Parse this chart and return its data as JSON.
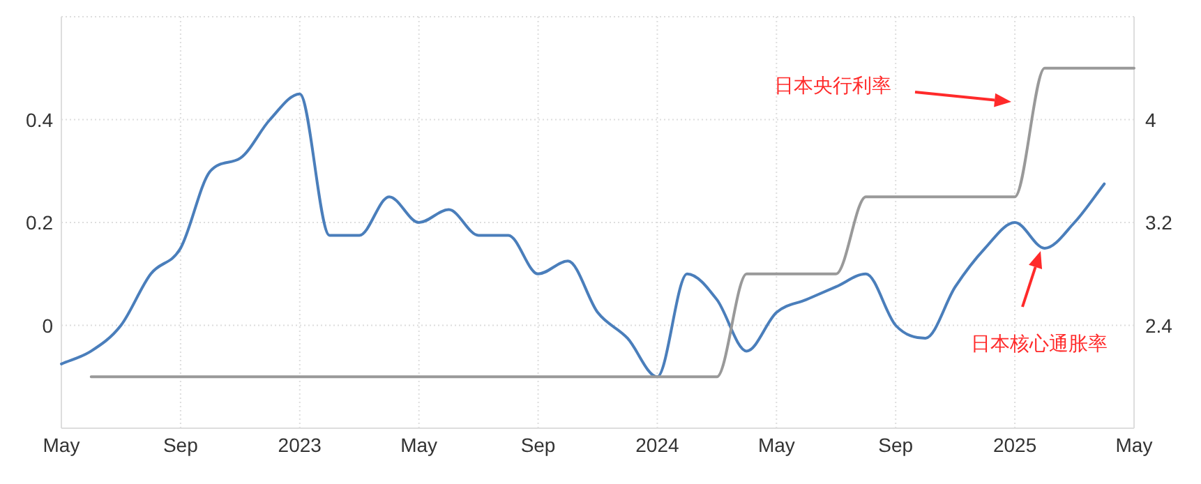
{
  "chart_data": {
    "type": "line",
    "x": [
      "2022-05",
      "2022-06",
      "2022-07",
      "2022-08",
      "2022-09",
      "2022-10",
      "2022-11",
      "2022-12",
      "2023-01",
      "2023-02",
      "2023-03",
      "2023-04",
      "2023-05",
      "2023-06",
      "2023-07",
      "2023-08",
      "2023-09",
      "2023-10",
      "2023-11",
      "2023-12",
      "2024-01",
      "2024-02",
      "2024-03",
      "2024-04",
      "2024-05",
      "2024-06",
      "2024-07",
      "2024-08",
      "2024-09",
      "2024-10",
      "2024-11",
      "2024-12",
      "2025-01",
      "2025-02",
      "2025-03",
      "2025-04",
      "2025-05"
    ],
    "series": [
      {
        "color": "#4a7ebb",
        "axis": "y2",
        "values": [
          2.1,
          2.2,
          2.4,
          2.8,
          3.0,
          3.6,
          3.7,
          4.0,
          4.2,
          3.1,
          3.1,
          3.4,
          3.2,
          3.3,
          3.1,
          3.1,
          2.8,
          2.9,
          2.5,
          2.3,
          2.0,
          2.8,
          2.6,
          2.2,
          2.5,
          2.6,
          2.7,
          2.8,
          2.4,
          2.3,
          2.7,
          3.0,
          3.2,
          3.0,
          3.2,
          3.5,
          null
        ]
      },
      {
        "color": "#999999",
        "values": [
          null,
          -0.1,
          -0.1,
          -0.1,
          -0.1,
          -0.1,
          -0.1,
          -0.1,
          -0.1,
          -0.1,
          -0.1,
          -0.1,
          -0.1,
          -0.1,
          -0.1,
          -0.1,
          -0.1,
          -0.1,
          -0.1,
          -0.1,
          -0.1,
          -0.1,
          -0.1,
          0.1,
          0.1,
          0.1,
          0.1,
          0.25,
          0.25,
          0.25,
          0.25,
          0.25,
          0.25,
          0.5,
          0.5,
          0.5,
          0.5
        ]
      }
    ],
    "xlim": [
      "2022-05",
      "2025-05"
    ],
    "xticks": [
      {
        "value": "2022-05",
        "label": "May"
      },
      {
        "value": "2022-09",
        "label": "Sep"
      },
      {
        "value": "2023-01",
        "label": "2023"
      },
      {
        "value": "2023-05",
        "label": "May"
      },
      {
        "value": "2023-09",
        "label": "Sep"
      },
      {
        "value": "2024-01",
        "label": "2024"
      },
      {
        "value": "2024-05",
        "label": "May"
      },
      {
        "value": "2024-09",
        "label": "Sep"
      },
      {
        "value": "2025-01",
        "label": "2025"
      },
      {
        "value": "2025-05",
        "label": "May"
      }
    ],
    "ylim": [
      -0.2,
      0.6
    ],
    "yticks": [
      0,
      0.2,
      0.4
    ],
    "y2lim": [
      1.6,
      4.8
    ],
    "y2ticks": [
      2.4,
      3.2,
      4
    ],
    "grid": true,
    "annotations": [
      "日本央行利率",
      "日本核心通胀率"
    ]
  }
}
